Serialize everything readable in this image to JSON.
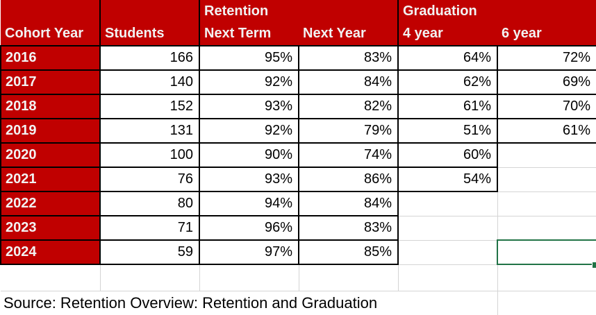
{
  "spreadsheet": {
    "group_header": {
      "retention": "Retention",
      "graduation": "Graduation"
    },
    "column_headers": [
      "Cohort Year",
      "Students",
      "Next Term",
      "Next Year",
      "4 year",
      "6 year"
    ],
    "rows": [
      {
        "cohort_year": "2016",
        "students": "166",
        "next_term": "95%",
        "next_year": "83%",
        "four_year": "64%",
        "six_year": "72%"
      },
      {
        "cohort_year": "2017",
        "students": "140",
        "next_term": "92%",
        "next_year": "84%",
        "four_year": "62%",
        "six_year": "69%"
      },
      {
        "cohort_year": "2018",
        "students": "152",
        "next_term": "93%",
        "next_year": "82%",
        "four_year": "61%",
        "six_year": "70%"
      },
      {
        "cohort_year": "2019",
        "students": "131",
        "next_term": "92%",
        "next_year": "79%",
        "four_year": "51%",
        "six_year": "61%"
      },
      {
        "cohort_year": "2020",
        "students": "100",
        "next_term": "90%",
        "next_year": "74%",
        "four_year": "60%",
        "six_year": ""
      },
      {
        "cohort_year": "2021",
        "students": "76",
        "next_term": "93%",
        "next_year": "86%",
        "four_year": "54%",
        "six_year": ""
      },
      {
        "cohort_year": "2022",
        "students": "80",
        "next_term": "94%",
        "next_year": "84%",
        "four_year": "",
        "six_year": ""
      },
      {
        "cohort_year": "2023",
        "students": "71",
        "next_term": "96%",
        "next_year": "83%",
        "four_year": "",
        "six_year": ""
      },
      {
        "cohort_year": "2024",
        "students": "59",
        "next_term": "97%",
        "next_year": "85%",
        "four_year": "",
        "six_year": ""
      }
    ],
    "source_note": "Source: Retention Overview: Retention and Graduation",
    "selection": {
      "row": "2024",
      "column": "6 year"
    },
    "colors": {
      "header_red": "#C00000",
      "header_text": "#F2F2F2",
      "cell_text": "#000000",
      "table_border": "#000000",
      "gridline_gray": "#D4D4D4",
      "selection_green": "#217346"
    }
  }
}
